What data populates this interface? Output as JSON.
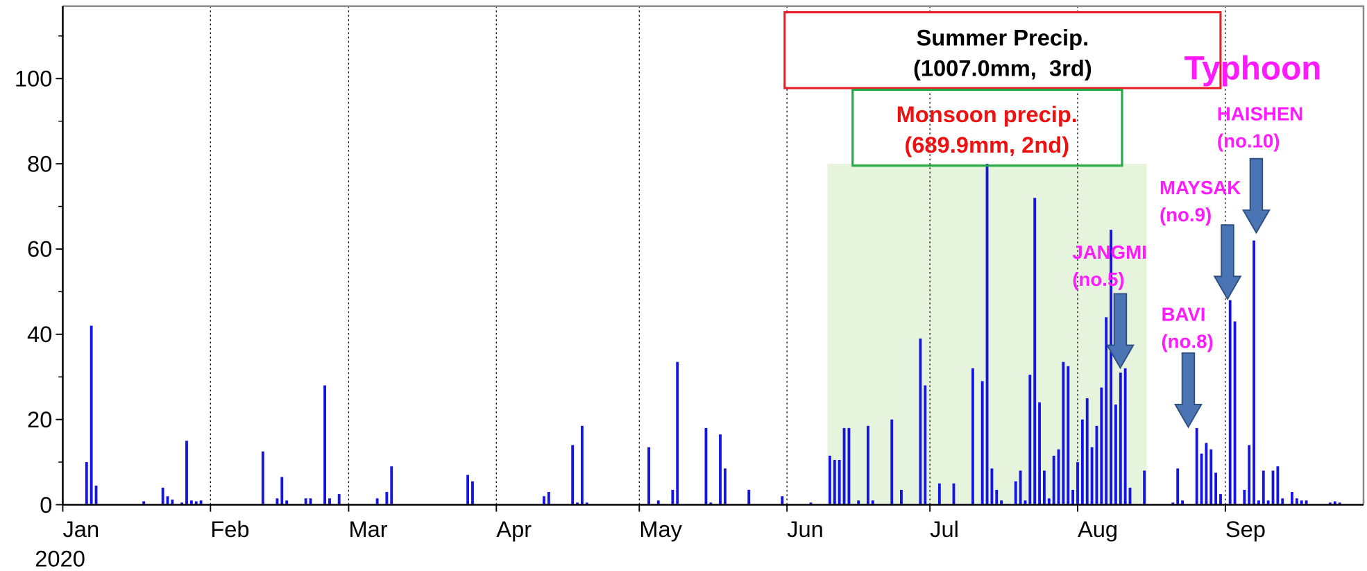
{
  "chart_data": {
    "type": "bar",
    "color": "#1414e6",
    "x": [
      6,
      7,
      8,
      18,
      22,
      23,
      24,
      26,
      27,
      28,
      29,
      30,
      43,
      46,
      47,
      48,
      52,
      53,
      56,
      57,
      59,
      67,
      69,
      70,
      86,
      87,
      102,
      103,
      108,
      109,
      110,
      111,
      124,
      126,
      129,
      130,
      136,
      137,
      139,
      140,
      145,
      152,
      158,
      162,
      163,
      164,
      165,
      166,
      168,
      170,
      171,
      175,
      177,
      181,
      182,
      185,
      188,
      192,
      194,
      195,
      196,
      197,
      198,
      201,
      202,
      203,
      204,
      205,
      206,
      207,
      208,
      209,
      210,
      211,
      212,
      213,
      214,
      215,
      216,
      217,
      218,
      219,
      220,
      221,
      222,
      223,
      224,
      225,
      228,
      234,
      235,
      236,
      239,
      240,
      241,
      242,
      243,
      244,
      246,
      247,
      249,
      250,
      251,
      252,
      253,
      254,
      255,
      256,
      257,
      259,
      260,
      261,
      262,
      267,
      268,
      269
    ],
    "values": [
      10,
      42,
      4.5,
      0.8,
      4,
      2,
      1.2,
      0.5,
      15,
      1,
      0.8,
      1,
      12.5,
      1.5,
      6.5,
      1,
      1.5,
      1.5,
      28,
      1.5,
      2.5,
      1.5,
      3,
      9,
      7,
      5.5,
      2,
      3,
      14,
      0.5,
      18.5,
      0.5,
      13.5,
      1,
      3.5,
      33.5,
      18,
      0.5,
      16.5,
      8.5,
      3.5,
      2,
      0.5,
      11.5,
      10.5,
      10.5,
      18,
      18,
      1,
      18.5,
      1,
      20,
      3.5,
      39,
      28,
      5,
      5,
      32,
      29,
      80,
      8.5,
      3.5,
      1,
      5.5,
      8,
      1,
      30.5,
      72,
      24,
      8,
      1.5,
      11.5,
      13,
      33.5,
      32.5,
      3.5,
      10,
      20,
      25,
      13.5,
      18.5,
      27.5,
      44,
      64.5,
      23.5,
      31,
      32,
      4,
      8,
      0.5,
      8.5,
      1,
      18,
      12,
      14.5,
      13,
      7.5,
      2.5,
      48,
      43,
      3.5,
      14,
      62,
      1,
      8,
      1,
      8,
      9,
      1.5,
      3,
      1.5,
      1,
      1,
      0.5,
      0.8,
      0.5
    ],
    "xlim": [
      1,
      274
    ],
    "xticks": [
      {
        "value": 1,
        "label": "Jan"
      },
      {
        "value": 32,
        "label": "Feb"
      },
      {
        "value": 61,
        "label": "Mar"
      },
      {
        "value": 92,
        "label": "Apr"
      },
      {
        "value": 122,
        "label": "May"
      },
      {
        "value": 153,
        "label": "Jun"
      },
      {
        "value": 183,
        "label": "Jul"
      },
      {
        "value": 214,
        "label": "Aug"
      },
      {
        "value": 245,
        "label": "Sep"
      }
    ],
    "year_label": "2020",
    "ylim": [
      0,
      117
    ],
    "yticks": [
      0,
      20,
      40,
      60,
      80,
      100
    ],
    "yminorticks": [
      10,
      30,
      50,
      70,
      90,
      110
    ],
    "grid": true,
    "shade_x": [
      162,
      228
    ],
    "shade_top": 80,
    "shade_color": "#e6f3dd",
    "boxes": [
      {
        "lines": [
          "Summer Precip.",
          "(1007.0mm,  3rd)"
        ],
        "color": "#e8202a",
        "text_color": "#000000"
      },
      {
        "lines": [
          "Monsoon precip.",
          "(689.9mm, 2nd)"
        ],
        "color": "#22aa44",
        "text_color": "#ee1111"
      }
    ],
    "typhoon_title": "Typhoon",
    "typhoon_color": "#ff1aff",
    "typhoons": [
      {
        "name": "JANGMI",
        "number": "(no.5)"
      },
      {
        "name": "BAVI",
        "number": "(no.8)"
      },
      {
        "name": "MAYSAK",
        "number": "(no.9)"
      },
      {
        "name": "HAISHEN",
        "number": "(no.10)"
      }
    ]
  }
}
